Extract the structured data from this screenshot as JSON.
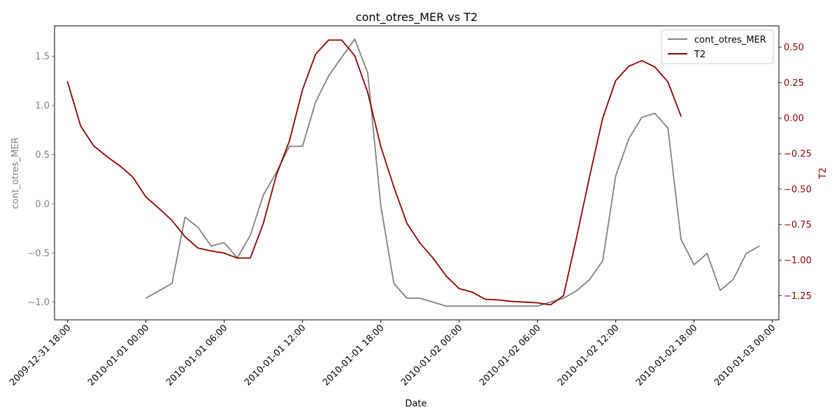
{
  "chart_data": {
    "type": "line",
    "title": "cont_otres_MER vs T2",
    "xlabel": "Date",
    "ylabel_left": "cont_otres_MER",
    "ylabel_right": "T2",
    "x_range_hours": [
      -7,
      48.5
    ],
    "x_origin": "2010-01-01 00:00",
    "x_step_hours": 1,
    "x_ticks": [
      {
        "hours": -6,
        "label": "2009-12-31 18:00"
      },
      {
        "hours": 0,
        "label": "2010-01-01 00:00"
      },
      {
        "hours": 6,
        "label": "2010-01-01 06:00"
      },
      {
        "hours": 12,
        "label": "2010-01-01 12:00"
      },
      {
        "hours": 18,
        "label": "2010-01-01 18:00"
      },
      {
        "hours": 24,
        "label": "2010-01-02 00:00"
      },
      {
        "hours": 30,
        "label": "2010-01-02 06:00"
      },
      {
        "hours": 36,
        "label": "2010-01-02 12:00"
      },
      {
        "hours": 42,
        "label": "2010-01-02 18:00"
      },
      {
        "hours": 48,
        "label": "2010-01-03 00:00"
      }
    ],
    "ylim_left": [
      -1.18,
      1.81
    ],
    "ylim_right": [
      -1.42,
      0.65
    ],
    "y_ticks_left": [
      {
        "value": -1.0,
        "label": "−1.0"
      },
      {
        "value": -0.5,
        "label": "−0.5"
      },
      {
        "value": 0.0,
        "label": "0.0"
      },
      {
        "value": 0.5,
        "label": "0.5"
      },
      {
        "value": 1.0,
        "label": "1.0"
      },
      {
        "value": 1.5,
        "label": "1.5"
      }
    ],
    "y_ticks_right": [
      {
        "value": -1.25,
        "label": "−1.25"
      },
      {
        "value": -1.0,
        "label": "−1.00"
      },
      {
        "value": -0.75,
        "label": "−0.75"
      },
      {
        "value": -0.5,
        "label": "−0.50"
      },
      {
        "value": -0.25,
        "label": "−0.25"
      },
      {
        "value": 0.0,
        "label": "0.00"
      },
      {
        "value": 0.25,
        "label": "0.25"
      },
      {
        "value": 0.5,
        "label": "0.50"
      }
    ],
    "legend_position": "top-right",
    "series": [
      {
        "name": "cont_otres_MER",
        "axis": "left",
        "color": "#808080",
        "start_hours": 0,
        "values": [
          -0.96,
          -0.885,
          -0.81,
          -0.135,
          -0.24,
          -0.43,
          -0.395,
          -0.55,
          -0.32,
          0.09,
          0.32,
          0.585,
          0.585,
          1.035,
          1.3,
          1.49,
          1.675,
          1.33,
          -0.02,
          -0.81,
          -0.96,
          -0.96,
          -1.0,
          -1.04,
          -1.04,
          -1.04,
          -1.04,
          -1.04,
          -1.04,
          -1.04,
          -1.04,
          -1.0,
          -0.96,
          -0.885,
          -0.77,
          -0.58,
          0.285,
          0.66,
          0.88,
          0.92,
          0.77,
          -0.36,
          -0.62,
          -0.505,
          -0.88,
          -0.77,
          -0.505,
          -0.43
        ]
      },
      {
        "name": "T2",
        "axis": "right",
        "color": "#8b0000",
        "start_hours": -6,
        "values": [
          0.255,
          -0.055,
          -0.195,
          -0.27,
          -0.335,
          -0.415,
          -0.555,
          -0.635,
          -0.72,
          -0.835,
          -0.915,
          -0.935,
          -0.95,
          -0.985,
          -0.985,
          -0.74,
          -0.4,
          -0.16,
          0.2,
          0.45,
          0.55,
          0.55,
          0.44,
          0.18,
          -0.2,
          -0.485,
          -0.74,
          -0.88,
          -0.985,
          -1.11,
          -1.2,
          -1.225,
          -1.275,
          -1.28,
          -1.29,
          -1.295,
          -1.3,
          -1.315,
          -1.25,
          -0.84,
          -0.41,
          0.0,
          0.265,
          0.365,
          0.405,
          0.36,
          0.255,
          0.015
        ]
      }
    ]
  }
}
